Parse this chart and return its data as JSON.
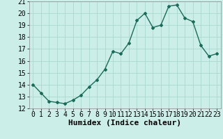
{
  "x": [
    0,
    1,
    2,
    3,
    4,
    5,
    6,
    7,
    8,
    9,
    10,
    11,
    12,
    13,
    14,
    15,
    16,
    17,
    18,
    19,
    20,
    21,
    22,
    23
  ],
  "y": [
    14.0,
    13.3,
    12.6,
    12.5,
    12.4,
    12.7,
    13.1,
    13.8,
    14.4,
    15.3,
    16.8,
    16.6,
    17.5,
    19.4,
    20.0,
    18.8,
    19.0,
    20.6,
    20.7,
    19.6,
    19.3,
    17.3,
    16.4,
    16.6
  ],
  "xlabel": "Humidex (Indice chaleur)",
  "ylim": [
    12,
    21
  ],
  "xlim": [
    -0.5,
    23.5
  ],
  "yticks": [
    12,
    13,
    14,
    15,
    16,
    17,
    18,
    19,
    20,
    21
  ],
  "xticks": [
    0,
    1,
    2,
    3,
    4,
    5,
    6,
    7,
    8,
    9,
    10,
    11,
    12,
    13,
    14,
    15,
    16,
    17,
    18,
    19,
    20,
    21,
    22,
    23
  ],
  "line_color": "#1a6b5a",
  "marker": "D",
  "marker_size": 2.0,
  "bg_color": "#cceee8",
  "grid_color": "#aad8d2",
  "xlabel_fontsize": 8,
  "tick_fontsize": 7
}
